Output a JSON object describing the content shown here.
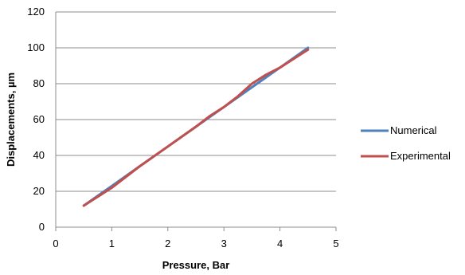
{
  "chart_data": {
    "type": "line",
    "xlabel": "Pressure, Bar",
    "ylabel": "Displacements, µm",
    "xlim": [
      0,
      5
    ],
    "ylim": [
      0,
      120
    ],
    "xticks": [
      "0",
      "1",
      "2",
      "3",
      "4",
      "5"
    ],
    "yticks": [
      "0",
      "20",
      "40",
      "60",
      "80",
      "100",
      "120"
    ],
    "grid": "horizontal",
    "legend_position": "right",
    "series": [
      {
        "name": "Numerical",
        "color": "#4F81BD",
        "x": [
          0.5,
          1,
          1.5,
          2,
          2.5,
          3,
          3.5,
          4,
          4.5
        ],
        "y": [
          12,
          23,
          34,
          45,
          56,
          67,
          78,
          89,
          100
        ]
      },
      {
        "name": "Experimental",
        "color": "#C0504D",
        "x": [
          0.5,
          1,
          1.5,
          2,
          2.5,
          2.75,
          3,
          3.25,
          3.5,
          3.75,
          4,
          4.5
        ],
        "y": [
          12,
          22,
          34,
          45,
          56,
          62,
          67,
          73,
          80,
          85,
          89,
          99
        ]
      }
    ]
  }
}
